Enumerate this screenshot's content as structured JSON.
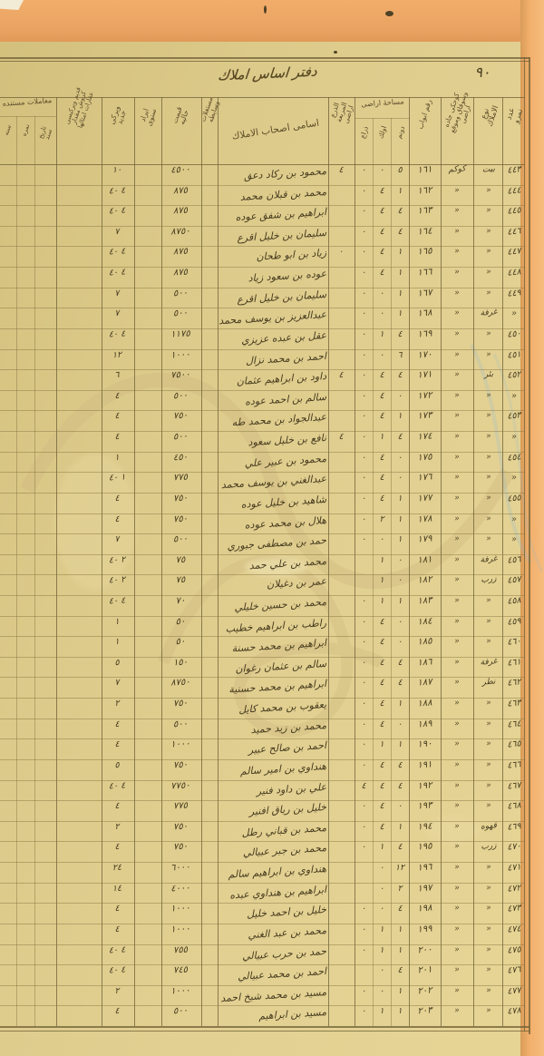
{
  "page": {
    "title": "دفتر اساس املاك",
    "page_number": "٩٠",
    "ditto_mark": "«",
    "colors": {
      "paper": "#dcc98a",
      "scan_edge_orange": "#f0ab68",
      "ink": "#4a3d20",
      "grid_line": "#6e5f35"
    }
  },
  "table": {
    "columns": {
      "no": {
        "label": "عدد نمرو"
      },
      "type": {
        "label": "نوع الاملاك"
      },
      "street": {
        "label": "كوجكى جاده وسوقاق وموقع اراضى"
      },
      "door": {
        "label": "رقم ابواب"
      },
      "area": {
        "label": "مساحهٔ اراضى",
        "subs": [
          "دونم",
          "اولك",
          "ذراع"
        ]
      },
      "sq": {
        "label": "الذرع المربعة اراضى"
      },
      "names": {
        "label": "اسامى اصحاب الاملاك"
      },
      "mustaghallat": {
        "label": "مستغلات وسايطه"
      },
      "value": {
        "label": "قيمت حاليه"
      },
      "revenue": {
        "label": "ايراد سنوى"
      },
      "vergi_new": {
        "label": "ويركى جديد"
      },
      "vergi_old": {
        "label": "قديم ويركيسى كروش مقدار عقارات امثالها"
      },
      "muamelat": {
        "label": "معاملات مستنده",
        "subs": [
          "تاريخ سند",
          "نمره",
          "سنه"
        ]
      }
    },
    "rows": [
      {
        "no": "٤٤٣",
        "type": "بيت",
        "street": "كوكم",
        "door": "١٦١",
        "a": [
          "٥",
          "٠",
          "٠",
          "٤"
        ],
        "name": "محمود بن ركاد دعق",
        "val": "٤٥٠٠",
        "rev": "",
        "tax": "١٠"
      },
      {
        "no": "٤٤٤",
        "type": "«",
        "street": "«",
        "door": "١٦٢",
        "a": [
          "١",
          "٤",
          "٠"
        ],
        "name": "محمد بن قبلان محمد",
        "val": "٨٧٥",
        "rev": "",
        "tax": "٤ ٤٠"
      },
      {
        "no": "٤٤٥",
        "type": "«",
        "street": "«",
        "door": "١٦٣",
        "a": [
          "٤",
          "٤",
          "٠"
        ],
        "name": "ابراهيم بن شفق عوده",
        "val": "٨٧٥",
        "rev": "",
        "tax": "٤ ٤٠"
      },
      {
        "no": "٤٤٦",
        "type": "«",
        "street": "«",
        "door": "١٦٤",
        "a": [
          "٤",
          "٤",
          "٠"
        ],
        "name": "سليمان بن خليل اقرع",
        "val": "٨٧٥٠",
        "rev": "",
        "tax": "٧"
      },
      {
        "no": "٤٤٧",
        "type": "«",
        "street": "«",
        "door": "١٦٥",
        "a": [
          "١",
          "٤",
          "٠",
          "٠"
        ],
        "name": "زياد بن ابو طحان",
        "val": "٨٧٥",
        "rev": "",
        "tax": "٤ ٤٠"
      },
      {
        "no": "٤٤٨",
        "type": "«",
        "street": "«",
        "door": "١٦٦",
        "a": [
          "١",
          "٤",
          "٠"
        ],
        "name": "عوده بن سعود زياد",
        "val": "٨٧٥",
        "rev": "",
        "tax": "٤ ٤٠"
      },
      {
        "no": "٤٤٩",
        "type": "«",
        "street": "«",
        "door": "١٦٧",
        "a": [
          "١",
          "٠",
          "٠"
        ],
        "name": "سليمان بن خليل اقرع",
        "val": "٥٠٠",
        "rev": "",
        "tax": "٧"
      },
      {
        "no": "«",
        "type": "غرفة",
        "street": "«",
        "door": "١٦٨",
        "a": [
          "١",
          "٠",
          "٠"
        ],
        "name": "عبدالعزيز بن يوسف محمد",
        "val": "٥٠٠",
        "rev": "",
        "tax": "٧"
      },
      {
        "no": "٤٥٠",
        "type": "«",
        "street": "«",
        "door": "١٦٩",
        "a": [
          "٤",
          "١",
          "٠"
        ],
        "name": "عقل بن عبده عزيزي",
        "val": "١١٧٥",
        "rev": "",
        "tax": "٤ ٤٠"
      },
      {
        "no": "٤٥١",
        "type": "«",
        "street": "«",
        "door": "١٧٠",
        "a": [
          "٦",
          "٠",
          "٠"
        ],
        "name": "احمد بن محمد نزال",
        "val": "١٠٠٠",
        "rev": "",
        "tax": "١٢"
      },
      {
        "no": "٤٥٢",
        "type": "بئر",
        "street": "«",
        "door": "١٧١",
        "a": [
          "٤",
          "٤",
          "٠",
          "٤"
        ],
        "name": "داود بن ابراهيم عثمان",
        "val": "٧٥٠٠",
        "rev": "",
        "tax": "٦"
      },
      {
        "no": "«",
        "type": "«",
        "street": "«",
        "door": "١٧٢",
        "a": [
          "٠",
          "٤",
          "٠"
        ],
        "name": "سالم بن احمد عوده",
        "val": "٥٠٠",
        "rev": "",
        "tax": "٤"
      },
      {
        "no": "٤٥٣",
        "type": "«",
        "street": "«",
        "door": "١٧٣",
        "a": [
          "١",
          "٤",
          "٠"
        ],
        "name": "عبدالجواد بن محمد طه",
        "val": "٧٥٠",
        "rev": "",
        "tax": "٤"
      },
      {
        "no": "«",
        "type": "«",
        "street": "«",
        "door": "١٧٤",
        "a": [
          "٤",
          "١",
          "٠",
          "٤"
        ],
        "name": "نافع بن خليل سعود",
        "val": "٥٠٠",
        "rev": "",
        "tax": "٤"
      },
      {
        "no": "٤٥٤",
        "type": "«",
        "street": "«",
        "door": "١٧٥",
        "a": [
          "٠",
          "٤",
          "٠"
        ],
        "name": "محمود بن عبير علي",
        "val": "٤٥٠",
        "rev": "",
        "tax": "١"
      },
      {
        "no": "«",
        "type": "«",
        "street": "«",
        "door": "١٧٦",
        "a": [
          "٠",
          "٤",
          "٠"
        ],
        "name": "عبدالغني بن يوسف محمد",
        "val": "٧٧٥",
        "rev": "",
        "tax": "١ ٤٠"
      },
      {
        "no": "٤٥٥",
        "type": "«",
        "street": "«",
        "door": "١٧٧",
        "a": [
          "١",
          "٤",
          "٠"
        ],
        "name": "شاهيد بن خليل عوده",
        "val": "٧٥٠",
        "rev": "",
        "tax": "٤"
      },
      {
        "no": "«",
        "type": "«",
        "street": "«",
        "door": "١٧٨",
        "a": [
          "١",
          "٢",
          "٠"
        ],
        "name": "هلال بن محمد عوده",
        "val": "٧٥٠",
        "rev": "",
        "tax": "٤"
      },
      {
        "no": "«",
        "type": "«",
        "street": "«",
        "door": "١٧٩",
        "a": [
          "١",
          "٠",
          "٠"
        ],
        "name": "حمد بن مصطفى جبوري",
        "val": "٥٠٠",
        "rev": "",
        "tax": "٧"
      },
      {
        "no": "٤٥٦",
        "type": "غرفة",
        "street": "«",
        "door": "١٨١",
        "a": [
          "٠",
          "١"
        ],
        "name": "محمد بن علي حمد",
        "val": "٧٥",
        "rev": "",
        "tax": "٢ ٤٠"
      },
      {
        "no": "٤٥٧",
        "type": "زرب",
        "street": "«",
        "door": "١٨٢",
        "a": [
          "٠",
          "١"
        ],
        "name": "عمر بن دغيلان",
        "val": "٧٥",
        "rev": "",
        "tax": "٢ ٤٠"
      },
      {
        "no": "٤٥٨",
        "type": "«",
        "street": "«",
        "door": "١٨٣",
        "a": [
          "١",
          "١",
          "٠"
        ],
        "name": "محمد بن حسين خليلي",
        "val": "٧٠",
        "rev": "",
        "tax": "٤ ٤٠"
      },
      {
        "no": "٤٥٩",
        "type": "«",
        "street": "«",
        "door": "١٨٤",
        "a": [
          "٠",
          "٤",
          "٠"
        ],
        "name": "راطب بن ابراهيم خطيب",
        "val": "٥٠",
        "rev": "",
        "tax": "١"
      },
      {
        "no": "٤٦٠",
        "type": "«",
        "street": "«",
        "door": "١٨٥",
        "a": [
          "٠",
          "٤",
          "٠"
        ],
        "name": "ابراهيم بن محمد حسنة",
        "val": "٥٠",
        "rev": "",
        "tax": "١"
      },
      {
        "no": "٤٦١",
        "type": "غرفة",
        "street": "«",
        "door": "١٨٦",
        "a": [
          "٤",
          "٤",
          "٠"
        ],
        "name": "سالم بن عثمان رغوان",
        "val": "١٥٠",
        "rev": "",
        "tax": "٥"
      },
      {
        "no": "٤٦٢",
        "type": "نطر",
        "street": "«",
        "door": "١٨٧",
        "a": [
          "٤",
          "٤",
          "٠"
        ],
        "name": "ابراهيم بن محمد حسنية",
        "val": "٨٧٥٠",
        "rev": "",
        "tax": "٧"
      },
      {
        "no": "٤٦٣",
        "type": "«",
        "street": "«",
        "door": "١٨٨",
        "a": [
          "١",
          "٤",
          "٠"
        ],
        "name": "يعقوب بن محمد كايل",
        "val": "٧٥٠",
        "rev": "",
        "tax": "٢"
      },
      {
        "no": "٤٦٤",
        "type": "«",
        "street": "«",
        "door": "١٨٩",
        "a": [
          "٠",
          "٤",
          "٠"
        ],
        "name": "محمد بن زيد حميد",
        "val": "٥٠٠",
        "rev": "",
        "tax": "٤"
      },
      {
        "no": "٤٦٥",
        "type": "«",
        "street": "«",
        "door": "١٩٠",
        "a": [
          "١",
          "١",
          "٠"
        ],
        "name": "احمد بن صالح عبير",
        "val": "١٠٠٠",
        "rev": "",
        "tax": "٤"
      },
      {
        "no": "٤٦٦",
        "type": "«",
        "street": "«",
        "door": "١٩١",
        "a": [
          "٤",
          "٤",
          "٠"
        ],
        "name": "هنداوي بن امير سالم",
        "val": "٧٥٠",
        "rev": "",
        "tax": "٥"
      },
      {
        "no": "٤٦٧",
        "type": "«",
        "street": "«",
        "door": "١٩٢",
        "a": [
          "٤",
          "٤",
          "٤"
        ],
        "name": "علي بن داود فنير",
        "val": "٧٧٥٠",
        "rev": "",
        "tax": "٤ ٤٠"
      },
      {
        "no": "٤٦٨",
        "type": "«",
        "street": "«",
        "door": "١٩٣",
        "a": [
          "٠",
          "٤",
          "٠"
        ],
        "name": "خليل بن رياق افنير",
        "val": "٧٧٥",
        "rev": "",
        "tax": "٤"
      },
      {
        "no": "٤٦٩",
        "type": "قهوه",
        "street": "«",
        "door": "١٩٤",
        "a": [
          "١",
          "٤",
          "٠"
        ],
        "name": "محمد بن قباني رطل",
        "val": "٧٥٠",
        "rev": "",
        "tax": "٢"
      },
      {
        "no": "٤٧٠",
        "type": "زرب",
        "street": "«",
        "door": "١٩٥",
        "a": [
          "٤",
          "١",
          "٠"
        ],
        "name": "محمد بن جبر عبيالي",
        "val": "٧٥٠",
        "rev": "",
        "tax": "٤"
      },
      {
        "no": "٤٧١",
        "type": "«",
        "street": "«",
        "door": "١٩٦",
        "a": [
          "١٢",
          "٠"
        ],
        "name": "هنداوي بن ابراهيم سالم",
        "val": "٦٠٠٠",
        "rev": "",
        "tax": "٢٤"
      },
      {
        "no": "٤٧٢",
        "type": "«",
        "street": "«",
        "door": "١٩٧",
        "a": [
          "٢",
          "٠"
        ],
        "name": "ابراهيم بن هنداوي عبده",
        "val": "٤٠٠٠",
        "rev": "",
        "tax": "١٤"
      },
      {
        "no": "٤٧٣",
        "type": "«",
        "street": "«",
        "door": "١٩٨",
        "a": [
          "٤",
          "٠",
          "٠"
        ],
        "name": "خليل بن احمد خليل",
        "val": "١٠٠٠",
        "rev": "",
        "tax": "٤"
      },
      {
        "no": "٤٧٤",
        "type": "«",
        "street": "«",
        "door": "١٩٩",
        "a": [
          "١",
          "١",
          "٠"
        ],
        "name": "محمد بن عبد الغني",
        "val": "١٠٠٠",
        "rev": "",
        "tax": "٤"
      },
      {
        "no": "٤٧٥",
        "type": "«",
        "street": "«",
        "door": "٢٠٠",
        "a": [
          "١",
          "١",
          "٠"
        ],
        "name": "حمد بن حرب عبيالي",
        "val": "٧٥٥",
        "rev": "",
        "tax": "٤ ٤٠"
      },
      {
        "no": "٤٧٦",
        "type": "«",
        "street": "«",
        "door": "٢٠١",
        "a": [
          "٤",
          "٠"
        ],
        "name": "احمد بن محمد عبيالي",
        "val": "٧٤٥",
        "rev": "",
        "tax": "٤ ٤٠"
      },
      {
        "no": "٤٧٧",
        "type": "«",
        "street": "«",
        "door": "٢٠٢",
        "a": [
          "١",
          "٠",
          "٠"
        ],
        "name": "مسيد بن محمد شيخ احمد",
        "val": "١٠٠٠",
        "rev": "",
        "tax": "٢"
      },
      {
        "no": "٤٧٨",
        "type": "«",
        "street": "«",
        "door": "٢٠٣",
        "a": [
          "١",
          "١",
          "٠"
        ],
        "name": "مسيد بن ابراهيم",
        "val": "٥٠٠",
        "rev": "",
        "tax": "٤"
      }
    ]
  }
}
